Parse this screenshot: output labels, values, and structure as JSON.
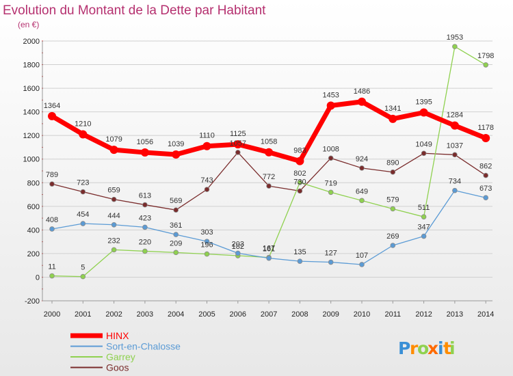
{
  "chart_data": {
    "type": "line",
    "title": "Evolution du Montant de la Dette par Habitant",
    "subtitle": "(en €)",
    "xlabel": "",
    "ylabel": "",
    "ylim": [
      -200,
      2000
    ],
    "y_ticks": [
      -200,
      0,
      200,
      400,
      600,
      800,
      1000,
      1200,
      1400,
      1600,
      1800,
      2000
    ],
    "grid": "horizontal",
    "legend_position": "bottom-left",
    "categories": [
      "2000",
      "2001",
      "2002",
      "2003",
      "2004",
      "2005",
      "2006",
      "2007",
      "2008",
      "2009",
      "2010",
      "2011",
      "2012",
      "2013",
      "2014"
    ],
    "series": [
      {
        "name": "Goos",
        "color": "#7a2c2c",
        "values": [
          789,
          723,
          659,
          613,
          569,
          743,
          1057,
          772,
          730,
          1008,
          924,
          890,
          1049,
          1037,
          862
        ]
      },
      {
        "name": "Garrey",
        "color": "#8fd14f",
        "values": [
          11,
          5,
          232,
          220,
          209,
          196,
          182,
          167,
          802,
          719,
          649,
          579,
          511,
          1953,
          1798
        ]
      },
      {
        "name": "Sort-en-Chalosse",
        "color": "#5b9bd5",
        "values": [
          408,
          454,
          444,
          423,
          361,
          303,
          203,
          161,
          135,
          127,
          107,
          269,
          347,
          734,
          673
        ]
      },
      {
        "name": "HINX",
        "color": "#ff0000",
        "values": [
          1364,
          1210,
          1079,
          1056,
          1039,
          1110,
          1125,
          1058,
          983,
          1453,
          1486,
          1341,
          1395,
          1284,
          1178
        ]
      }
    ],
    "legend_order": [
      "HINX",
      "Sort-en-Chalosse",
      "Garrey",
      "Goos"
    ]
  },
  "branding": {
    "logo_letters": [
      "P",
      "r",
      "o",
      "x",
      "i",
      "t",
      "i"
    ],
    "logo_colors": [
      "#3a8fd6",
      "#ff8c00",
      "#8fd14f",
      "#ff6a00",
      "#3a8fd6",
      "#ff8c00",
      "#8fd14f"
    ]
  }
}
